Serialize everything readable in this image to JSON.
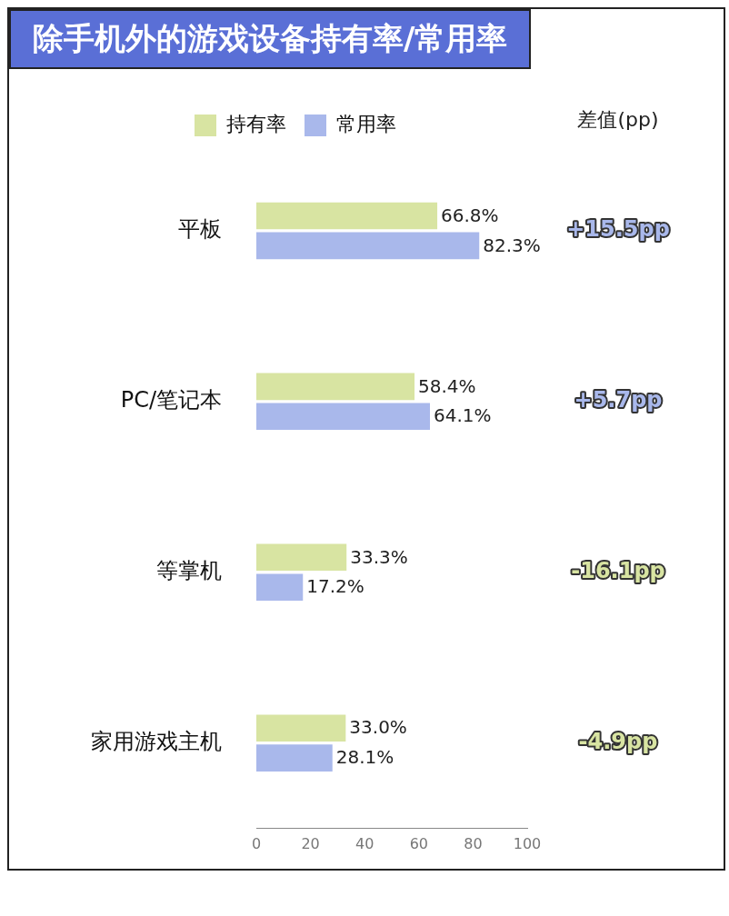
{
  "chart_data": {
    "type": "bar",
    "title": "除手机外的游戏设备持有率/常用率",
    "orientation": "horizontal",
    "categories": [
      "平板",
      "PC/笔记本",
      "等掌机",
      "家用游戏主机"
    ],
    "series": [
      {
        "name": "持有率",
        "color": "#d8e4a2",
        "values": [
          66.8,
          58.4,
          33.3,
          33.0
        ],
        "value_labels": [
          "66.8%",
          "58.4%",
          "33.3%",
          "33.0%"
        ]
      },
      {
        "name": "常用率",
        "color": "#a9b8eb",
        "values": [
          82.3,
          64.1,
          17.2,
          28.1
        ],
        "value_labels": [
          "82.3%",
          "64.1%",
          "17.2%",
          "28.1%"
        ]
      }
    ],
    "xlim": [
      0,
      100
    ],
    "xticks": [
      0,
      20,
      40,
      60,
      80,
      100
    ],
    "grid": false,
    "legend": "top",
    "annotations": [
      "差值(pp)",
      "+15.5pp",
      "+5.7pp",
      "-16.1pp",
      "-4.9pp"
    ]
  }
}
